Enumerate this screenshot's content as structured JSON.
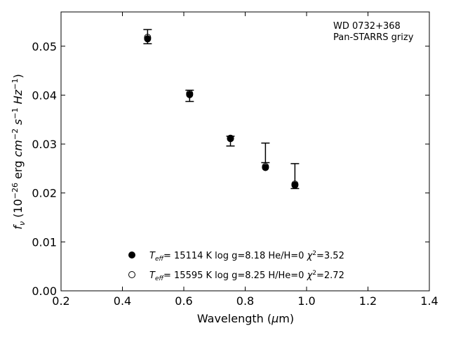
{
  "chart_data": {
    "type": "scatter",
    "xlabel": "Wavelength (μm)",
    "xlabel_parts": {
      "pre": "Wavelength (",
      "mu": "μ",
      "post": "m)"
    },
    "ylabel": "f_ν (10^-26 erg cm^-2 s^-1 Hz^-1)",
    "ylabel_parts": {
      "f": "f",
      "nu": "ν",
      "open": " (10",
      "exp26": "−26",
      "erg": " erg ",
      "cm": "cm",
      "exp2": "−2",
      "s": " s",
      "exp1": "−1",
      "hz": " Hz",
      "exp1b": "−1",
      "close": ")"
    },
    "xlim": [
      0.2,
      1.4
    ],
    "ylim": [
      0.0,
      0.057
    ],
    "xticks": [
      0.2,
      0.4,
      0.6,
      0.8,
      1.0,
      1.2,
      1.4
    ],
    "xtick_labels": [
      "0.2",
      "0.4",
      "0.6",
      "0.8",
      "1.0",
      "1.2",
      "1.4"
    ],
    "yticks": [
      0.0,
      0.01,
      0.02,
      0.03,
      0.04,
      0.05
    ],
    "ytick_labels": [
      "0.00",
      "0.01",
      "0.02",
      "0.03",
      "0.04",
      "0.05"
    ],
    "grid": false,
    "annotation": [
      "WD 0732+368",
      "Pan-STARRS grizy"
    ],
    "observed": {
      "x": [
        0.482,
        0.619,
        0.752,
        0.866,
        0.962
      ],
      "y": [
        0.0519,
        0.0399,
        0.0312,
        0.0282,
        0.0235
      ],
      "yerr_low": [
        0.0505,
        0.0387,
        0.0296,
        0.0262,
        0.0209
      ],
      "yerr_high": [
        0.0534,
        0.041,
        0.0316,
        0.0302,
        0.026
      ]
    },
    "series": [
      {
        "marker": "filled-circle",
        "x": [
          0.482,
          0.619,
          0.752,
          0.866,
          0.962
        ],
        "y": [
          0.0515,
          0.0401,
          0.0311,
          0.0252,
          0.0216
        ],
        "legend": {
          "teff": "T",
          "eff": "eff",
          "text": "= 15114 K  log g=8.18  He/H=0  ",
          "chi": "χ",
          "chi_exp": "2",
          "chi_val": "=3.52"
        }
      },
      {
        "marker": "open-circle",
        "x": [
          0.482,
          0.619,
          0.752,
          0.866,
          0.962
        ],
        "y": [
          0.0518,
          0.0403,
          0.0312,
          0.0254,
          0.0218
        ],
        "legend": {
          "teff": "T",
          "eff": "eff",
          "text": "= 15595 K  log g=8.25  H/He=0  ",
          "chi": "χ",
          "chi_exp": "2",
          "chi_val": "=2.72"
        }
      }
    ],
    "legend_position": "lower-center"
  }
}
